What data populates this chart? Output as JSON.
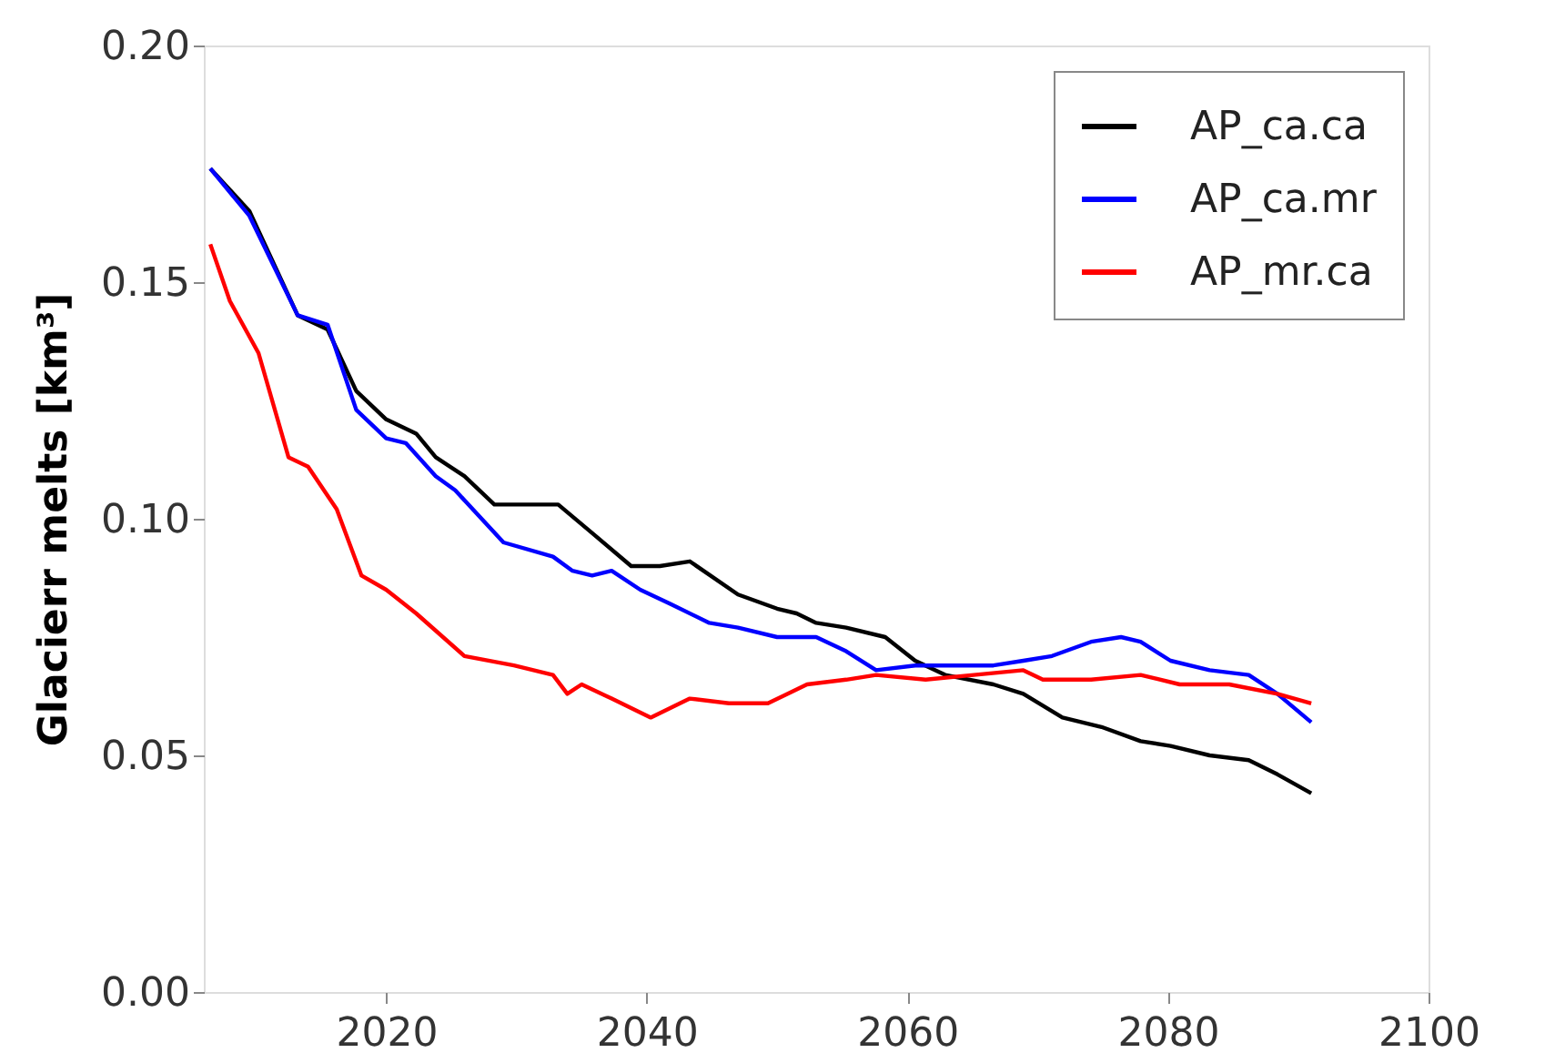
{
  "chart_data": {
    "type": "line",
    "ylabel": "Glacierr melts [km³]",
    "xlim": [
      2006,
      2100
    ],
    "xticks": [
      2020,
      2040,
      2060,
      2080,
      2100
    ],
    "ylim": [
      0,
      0.2
    ],
    "yticks": [
      {
        "value": 0,
        "label": "0.00"
      },
      {
        "value": 0.05,
        "label": "0.05"
      },
      {
        "value": 0.1,
        "label": "0.10"
      },
      {
        "value": 0.15,
        "label": "0.15"
      },
      {
        "value": 0.2,
        "label": "0.20"
      }
    ],
    "grid": false,
    "legend": "top right",
    "marker": "none",
    "line_style": "solid",
    "series": [
      {
        "name": "AP_ca.ca",
        "color": "#000000",
        "x": [
          2006.5,
          2009.5,
          2013.2,
          2015.5,
          2017.7,
          2020,
          2022.3,
          2023.8,
          2026,
          2028.3,
          2031.3,
          2033.2,
          2035.8,
          2038.8,
          2041,
          2043.3,
          2047,
          2050,
          2051.5,
          2053,
          2055.3,
          2058.3,
          2060.6,
          2062.9,
          2066.6,
          2068.9,
          2071.9,
          2074.9,
          2077.9,
          2080.2,
          2083.2,
          2086.2,
          2088.4,
          2091
        ],
        "values": [
          0.174,
          0.165,
          0.143,
          0.14,
          0.127,
          0.121,
          0.118,
          0.113,
          0.109,
          0.103,
          0.103,
          0.103,
          0.097,
          0.09,
          0.09,
          0.091,
          0.084,
          0.081,
          0.08,
          0.078,
          0.077,
          0.075,
          0.07,
          0.067,
          0.065,
          0.063,
          0.058,
          0.056,
          0.053,
          0.052,
          0.05,
          0.049,
          0.046,
          0.042
        ]
      },
      {
        "name": "AP_ca.mr",
        "color": "#0000ff",
        "x": [
          2006.5,
          2009.5,
          2013.2,
          2015.5,
          2017.7,
          2020,
          2021.5,
          2023.8,
          2025.3,
          2029,
          2032.8,
          2034.3,
          2035.8,
          2037.3,
          2039.5,
          2041.8,
          2044.8,
          2047,
          2050,
          2053,
          2055.3,
          2057.6,
          2060.6,
          2063.6,
          2066.6,
          2068.9,
          2071.1,
          2074.1,
          2076.4,
          2077.9,
          2080.2,
          2083.2,
          2086.2,
          2088.4,
          2091
        ],
        "values": [
          0.174,
          0.164,
          0.143,
          0.141,
          0.123,
          0.117,
          0.116,
          0.109,
          0.106,
          0.095,
          0.092,
          0.089,
          0.088,
          0.089,
          0.085,
          0.082,
          0.078,
          0.077,
          0.075,
          0.075,
          0.072,
          0.068,
          0.069,
          0.069,
          0.069,
          0.07,
          0.071,
          0.074,
          0.075,
          0.074,
          0.07,
          0.068,
          0.067,
          0.063,
          0.057
        ]
      },
      {
        "name": "AP_mr.ca",
        "color": "#ff0000",
        "x": [
          2006.5,
          2008,
          2010.2,
          2012.5,
          2014,
          2016.2,
          2018.1,
          2020,
          2022.3,
          2026,
          2029.8,
          2032.8,
          2033.9,
          2035,
          2037.3,
          2040.3,
          2043.3,
          2046.3,
          2049.3,
          2052.3,
          2055.3,
          2057.6,
          2061.4,
          2065.1,
          2068.9,
          2070.4,
          2074.1,
          2077.9,
          2080.9,
          2084.7,
          2088.4,
          2091
        ],
        "values": [
          0.158,
          0.146,
          0.135,
          0.113,
          0.111,
          0.102,
          0.088,
          0.085,
          0.08,
          0.071,
          0.069,
          0.067,
          0.063,
          0.065,
          0.062,
          0.058,
          0.062,
          0.061,
          0.061,
          0.065,
          0.066,
          0.067,
          0.066,
          0.067,
          0.068,
          0.066,
          0.066,
          0.067,
          0.065,
          0.065,
          0.063,
          0.061
        ]
      }
    ]
  }
}
